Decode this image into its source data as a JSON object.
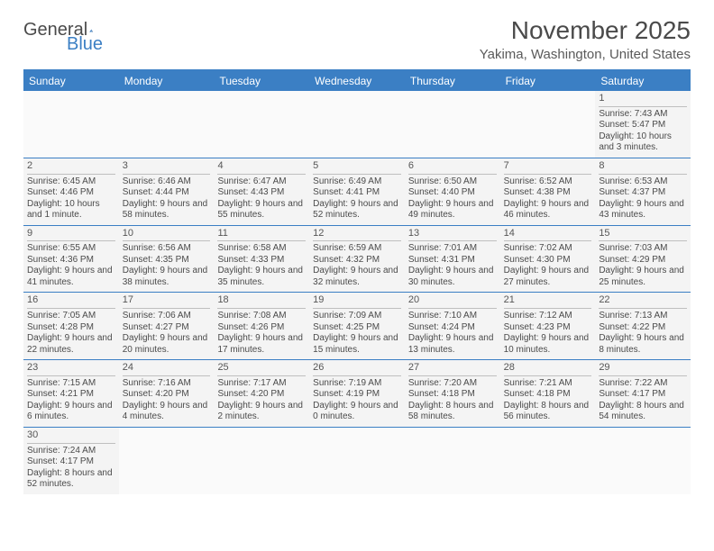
{
  "logo": {
    "text1": "General",
    "text2": "Blue"
  },
  "title": "November 2025",
  "location": "Yakima, Washington, United States",
  "colors": {
    "header_bg": "#3b7fc4",
    "header_text": "#ffffff",
    "cell_bg": "#f4f4f4",
    "border": "#3b7fc4",
    "text": "#4a4a4a"
  },
  "weekdays": [
    "Sunday",
    "Monday",
    "Tuesday",
    "Wednesday",
    "Thursday",
    "Friday",
    "Saturday"
  ],
  "weeks": [
    [
      null,
      null,
      null,
      null,
      null,
      null,
      {
        "d": "1",
        "sr": "7:43 AM",
        "ss": "5:47 PM",
        "dl": "10 hours and 3 minutes."
      }
    ],
    [
      {
        "d": "2",
        "sr": "6:45 AM",
        "ss": "4:46 PM",
        "dl": "10 hours and 1 minute."
      },
      {
        "d": "3",
        "sr": "6:46 AM",
        "ss": "4:44 PM",
        "dl": "9 hours and 58 minutes."
      },
      {
        "d": "4",
        "sr": "6:47 AM",
        "ss": "4:43 PM",
        "dl": "9 hours and 55 minutes."
      },
      {
        "d": "5",
        "sr": "6:49 AM",
        "ss": "4:41 PM",
        "dl": "9 hours and 52 minutes."
      },
      {
        "d": "6",
        "sr": "6:50 AM",
        "ss": "4:40 PM",
        "dl": "9 hours and 49 minutes."
      },
      {
        "d": "7",
        "sr": "6:52 AM",
        "ss": "4:38 PM",
        "dl": "9 hours and 46 minutes."
      },
      {
        "d": "8",
        "sr": "6:53 AM",
        "ss": "4:37 PM",
        "dl": "9 hours and 43 minutes."
      }
    ],
    [
      {
        "d": "9",
        "sr": "6:55 AM",
        "ss": "4:36 PM",
        "dl": "9 hours and 41 minutes."
      },
      {
        "d": "10",
        "sr": "6:56 AM",
        "ss": "4:35 PM",
        "dl": "9 hours and 38 minutes."
      },
      {
        "d": "11",
        "sr": "6:58 AM",
        "ss": "4:33 PM",
        "dl": "9 hours and 35 minutes."
      },
      {
        "d": "12",
        "sr": "6:59 AM",
        "ss": "4:32 PM",
        "dl": "9 hours and 32 minutes."
      },
      {
        "d": "13",
        "sr": "7:01 AM",
        "ss": "4:31 PM",
        "dl": "9 hours and 30 minutes."
      },
      {
        "d": "14",
        "sr": "7:02 AM",
        "ss": "4:30 PM",
        "dl": "9 hours and 27 minutes."
      },
      {
        "d": "15",
        "sr": "7:03 AM",
        "ss": "4:29 PM",
        "dl": "9 hours and 25 minutes."
      }
    ],
    [
      {
        "d": "16",
        "sr": "7:05 AM",
        "ss": "4:28 PM",
        "dl": "9 hours and 22 minutes."
      },
      {
        "d": "17",
        "sr": "7:06 AM",
        "ss": "4:27 PM",
        "dl": "9 hours and 20 minutes."
      },
      {
        "d": "18",
        "sr": "7:08 AM",
        "ss": "4:26 PM",
        "dl": "9 hours and 17 minutes."
      },
      {
        "d": "19",
        "sr": "7:09 AM",
        "ss": "4:25 PM",
        "dl": "9 hours and 15 minutes."
      },
      {
        "d": "20",
        "sr": "7:10 AM",
        "ss": "4:24 PM",
        "dl": "9 hours and 13 minutes."
      },
      {
        "d": "21",
        "sr": "7:12 AM",
        "ss": "4:23 PM",
        "dl": "9 hours and 10 minutes."
      },
      {
        "d": "22",
        "sr": "7:13 AM",
        "ss": "4:22 PM",
        "dl": "9 hours and 8 minutes."
      }
    ],
    [
      {
        "d": "23",
        "sr": "7:15 AM",
        "ss": "4:21 PM",
        "dl": "9 hours and 6 minutes."
      },
      {
        "d": "24",
        "sr": "7:16 AM",
        "ss": "4:20 PM",
        "dl": "9 hours and 4 minutes."
      },
      {
        "d": "25",
        "sr": "7:17 AM",
        "ss": "4:20 PM",
        "dl": "9 hours and 2 minutes."
      },
      {
        "d": "26",
        "sr": "7:19 AM",
        "ss": "4:19 PM",
        "dl": "9 hours and 0 minutes."
      },
      {
        "d": "27",
        "sr": "7:20 AM",
        "ss": "4:18 PM",
        "dl": "8 hours and 58 minutes."
      },
      {
        "d": "28",
        "sr": "7:21 AM",
        "ss": "4:18 PM",
        "dl": "8 hours and 56 minutes."
      },
      {
        "d": "29",
        "sr": "7:22 AM",
        "ss": "4:17 PM",
        "dl": "8 hours and 54 minutes."
      }
    ],
    [
      {
        "d": "30",
        "sr": "7:24 AM",
        "ss": "4:17 PM",
        "dl": "8 hours and 52 minutes."
      },
      null,
      null,
      null,
      null,
      null,
      null
    ]
  ],
  "labels": {
    "sunrise": "Sunrise:",
    "sunset": "Sunset:",
    "daylight": "Daylight:"
  }
}
